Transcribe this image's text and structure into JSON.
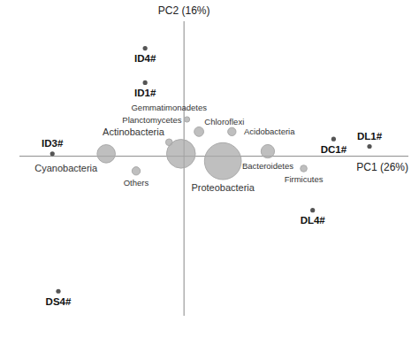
{
  "chart_data": {
    "type": "scatter",
    "xlabel": "PC1 (26%)",
    "ylabel": "PC2 (16%)",
    "xlim": [
      -0.55,
      0.75
    ],
    "ylim": [
      -0.65,
      0.55
    ],
    "tick_labels": false,
    "grid": false,
    "series": [
      {
        "type": "bubble",
        "color": "#aaaaaa",
        "labels": [
          "Proteobacteria",
          "Actinobacteria",
          "Bacteroidetes",
          "Cyanobacteria",
          "Chloroflexi",
          "Acidobacteria",
          "Gemmatimonadetes",
          "Planctomycetes",
          "Others",
          "Firmicutes"
        ],
        "x": [
          0.13,
          -0.01,
          0.28,
          -0.26,
          0.05,
          0.16,
          -0.05,
          0.01,
          -0.16,
          0.4
        ],
        "values": [
          -0.02,
          0.01,
          0.02,
          0.01,
          0.1,
          0.1,
          0.057,
          0.15,
          -0.06,
          -0.05
        ],
        "sizes": [
          900,
          550,
          120,
          220,
          60,
          45,
          30,
          20,
          45,
          30
        ]
      },
      {
        "type": "scatter",
        "color": "#555555",
        "labels": [
          "ID4#",
          "ID1#",
          "ID3#",
          "DC1#",
          "DL1#",
          "DL4#",
          "DS4#"
        ],
        "x": [
          -0.13,
          -0.13,
          -0.44,
          0.5,
          0.62,
          0.43,
          -0.42
        ],
        "values": [
          0.44,
          0.3,
          0.01,
          0.07,
          0.04,
          -0.22,
          -0.55
        ]
      }
    ]
  }
}
